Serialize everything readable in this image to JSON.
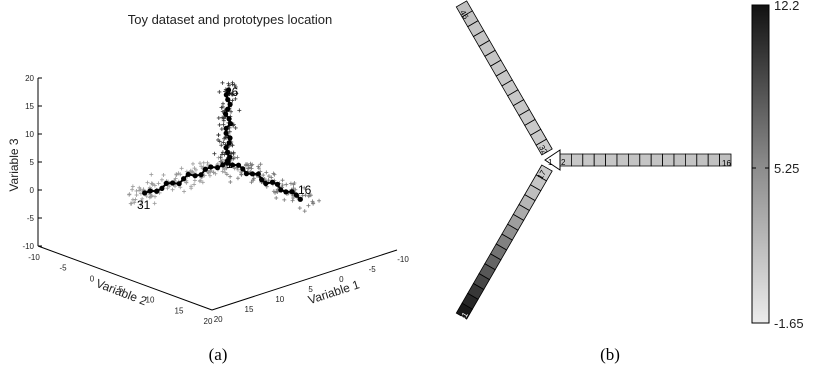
{
  "chart_data": [
    {
      "type": "scatter3d",
      "panel_label": "(a)",
      "title": "Toy dataset and prototypes location",
      "xlabel": "Variable 1",
      "ylabel": "Variable 2",
      "zlabel": "Variable 3",
      "xlim": [
        -10,
        20
      ],
      "ylim": [
        -10,
        20
      ],
      "zlim": [
        -10,
        20
      ],
      "x_ticks": [
        "-10",
        "-5",
        "0",
        "5",
        "10",
        "15",
        "20"
      ],
      "y_ticks": [
        "-10",
        "-5",
        "0",
        "5",
        "10",
        "15",
        "20"
      ],
      "z_ticks": [
        "-10",
        "-5",
        "0",
        "5",
        "10",
        "15",
        "20"
      ],
      "prototype_labels": [
        {
          "id": "46",
          "arm": "up"
        },
        {
          "id": "1",
          "arm": "center"
        },
        {
          "id": "16",
          "arm": "right"
        },
        {
          "id": "31",
          "arm": "left"
        }
      ],
      "arms": [
        {
          "name": "arm-up",
          "from": "1",
          "to": "46",
          "prototypes": 15
        },
        {
          "name": "arm-right",
          "from": "1",
          "to": "16",
          "prototypes": 15
        },
        {
          "name": "arm-left",
          "from": "1",
          "to": "31",
          "prototypes": 15
        }
      ]
    },
    {
      "type": "heatmap",
      "panel_label": "(b)",
      "colorbar": {
        "min": -1.65,
        "mid": 5.25,
        "max": 12.2,
        "labels": [
          "12.2",
          "5.25",
          "-1.65"
        ],
        "colormap": "gray-reversed"
      },
      "arms": [
        {
          "name": "arm-right",
          "start_label": "2",
          "end_label": "16",
          "cells": 15,
          "values": [
            0.6,
            0.7,
            0.7,
            0.8,
            0.7,
            0.8,
            0.9,
            0.8,
            0.9,
            0.9,
            1.0,
            0.9,
            1.0,
            1.1,
            1.2
          ]
        },
        {
          "name": "arm-up",
          "start_label": "32",
          "end_label": "46",
          "cells": 15,
          "values": [
            0.4,
            0.5,
            0.5,
            0.6,
            0.6,
            0.7,
            0.6,
            0.7,
            0.7,
            0.8,
            0.8,
            0.9,
            0.9,
            1.0,
            1.2
          ]
        },
        {
          "name": "arm-left",
          "start_label": "17",
          "end_label": "31",
          "cells": 15,
          "values": [
            0.5,
            0.8,
            1.2,
            1.8,
            2.5,
            3.3,
            4.2,
            5.1,
            6.0,
            6.9,
            7.8,
            8.8,
            9.8,
            10.8,
            11.6
          ]
        }
      ],
      "center_label": "1"
    }
  ]
}
